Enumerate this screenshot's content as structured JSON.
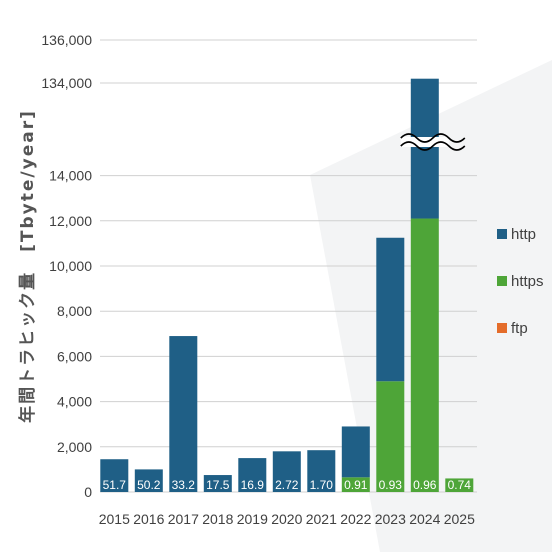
{
  "chart_data": {
    "type": "bar",
    "stacked": true,
    "broken_axis": true,
    "ylabel": "年間トラヒック量　[Tbyte/year]",
    "y_ticks": [
      "0",
      "2,000",
      "4,000",
      "6,000",
      "8,000",
      "10,000",
      "12,000",
      "14,000",
      "134,000",
      "136,000"
    ],
    "categories": [
      "2015",
      "2016",
      "2017",
      "2018",
      "2019",
      "2020",
      "2021",
      "2022",
      "2023",
      "2024",
      "2025"
    ],
    "series": [
      {
        "name": "https",
        "color": "#4ea538",
        "values": [
          0,
          0,
          0,
          0,
          0,
          0,
          0,
          650,
          4900,
          12100,
          600
        ]
      },
      {
        "name": "http",
        "color": "#1f5f86",
        "values": [
          1450,
          1000,
          6900,
          750,
          1500,
          1800,
          1850,
          2250,
          6350,
          122100,
          0
        ]
      },
      {
        "name": "ftp",
        "color": "#e46c2a",
        "values": [
          51.7,
          50.2,
          33.2,
          17.5,
          16.9,
          2.72,
          1.7,
          0.91,
          0.93,
          0.96,
          0.74
        ]
      }
    ],
    "legend_order": [
      "http",
      "https",
      "ftp"
    ],
    "data_labels": [
      "51.7",
      "50.2",
      "33.2",
      "17.5",
      "16.9",
      "2.72",
      "1.70",
      "0.91",
      "0.93",
      "0.96",
      "0.74"
    ],
    "legend_position": "right",
    "grid": true
  }
}
